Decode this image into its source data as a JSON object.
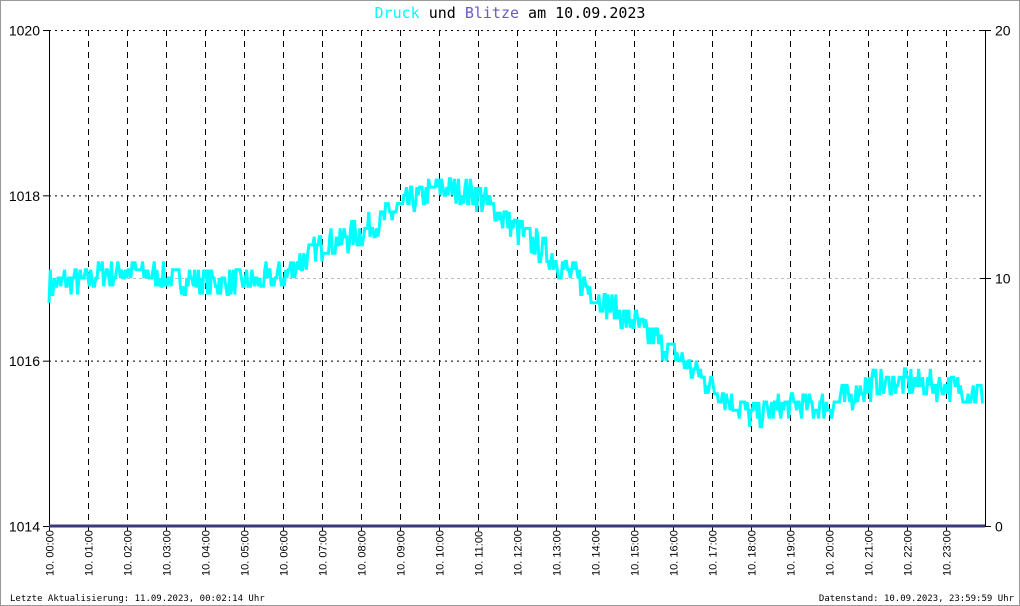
{
  "title": {
    "part1": "Druck",
    "part2": " und ",
    "part3": "Blitze",
    "part4": " am 10.09.2023"
  },
  "footer": {
    "left": "Letzte Aktualisierung: 11.09.2023, 00:02:14 Uhr",
    "right": "Datenstand: 10.09.2023, 23:59:59 Uhr"
  },
  "colors": {
    "pressure": "#00ffff",
    "lightning": "#6a5acd",
    "axis": "#000000"
  },
  "chart_data": {
    "type": "line",
    "title": "Druck und Blitze am 10.09.2023",
    "left_axis": {
      "label": "Druck",
      "ylim": [
        1014,
        1020
      ],
      "ticks": [
        "1014",
        "1016",
        "1018",
        "1020"
      ]
    },
    "right_axis": {
      "label": "Blitze",
      "ylim": [
        0,
        20
      ],
      "ticks": [
        "0",
        "10",
        "20"
      ]
    },
    "x_ticks": [
      "10. 00:00",
      "10. 01:00",
      "10. 02:00",
      "10. 03:00",
      "10. 04:00",
      "10. 05:00",
      "10. 06:00",
      "10. 07:00",
      "10. 08:00",
      "10. 09:00",
      "10. 10:00",
      "10. 11:00",
      "10. 12:00",
      "10. 13:00",
      "10. 14:00",
      "10. 15:00",
      "10. 16:00",
      "10. 17:00",
      "10. 18:00",
      "10. 19:00",
      "10. 20:00",
      "10. 21:00",
      "10. 22:00",
      "10. 23:00"
    ],
    "grid": true,
    "series": [
      {
        "name": "Druck",
        "x_hours": [
          0,
          1,
          2,
          3,
          4,
          5,
          6,
          7,
          8,
          9,
          10,
          11,
          12,
          13,
          14,
          15,
          16,
          17,
          18,
          19,
          20,
          21,
          22,
          23,
          24
        ],
        "values": [
          1016.9,
          1017.0,
          1017.1,
          1017.0,
          1016.95,
          1016.95,
          1017.0,
          1017.4,
          1017.55,
          1017.85,
          1018.1,
          1018.0,
          1017.6,
          1017.2,
          1016.8,
          1016.45,
          1016.1,
          1015.7,
          1015.35,
          1015.45,
          1015.45,
          1015.7,
          1015.75,
          1015.7,
          1015.6
        ]
      },
      {
        "name": "Blitze",
        "x_hours": [
          0,
          24
        ],
        "values": [
          0,
          0
        ]
      }
    ]
  }
}
